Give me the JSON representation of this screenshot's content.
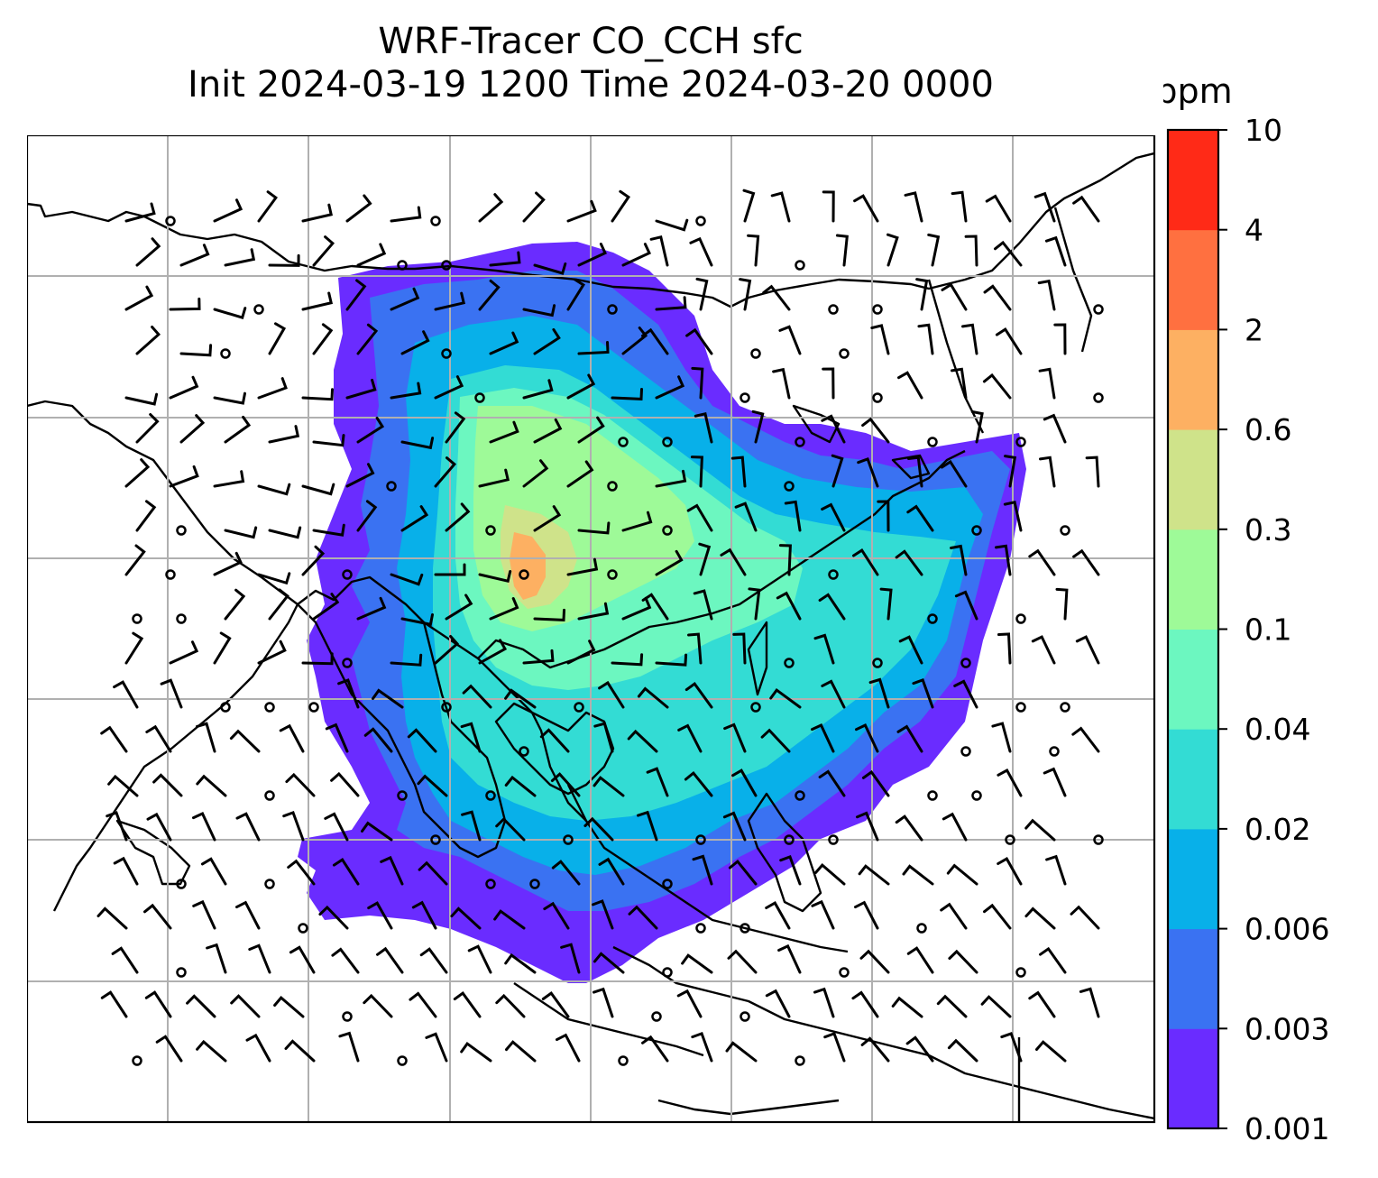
{
  "title": {
    "line1": "WRF-Tracer CO_CCH sfc",
    "line2": "Init 2024-03-19 1200 Time 2024-03-20 0000"
  },
  "colorbar": {
    "unit": "ppm",
    "levels": [
      {
        "label": "0.001",
        "color": "#6a2cff"
      },
      {
        "label": "0.003",
        "color": "#3a72f2"
      },
      {
        "label": "0.006",
        "color": "#08b0e9"
      },
      {
        "label": "0.02",
        "color": "#33dcd4"
      },
      {
        "label": "0.04",
        "color": "#6cf7c0"
      },
      {
        "label": "0.1",
        "color": "#9efa98"
      },
      {
        "label": "0.3",
        "color": "#cfe38a"
      },
      {
        "label": "0.6",
        "color": "#fdb062"
      },
      {
        "label": "2",
        "color": "#ff7040"
      },
      {
        "label": "4",
        "color": "#ff2a17"
      },
      {
        "label": "10",
        "color": null
      }
    ]
  },
  "map": {
    "gridlines": true,
    "features": [
      "coastlines",
      "country-borders",
      "wind-barbs",
      "calm-wind-circles"
    ]
  }
}
